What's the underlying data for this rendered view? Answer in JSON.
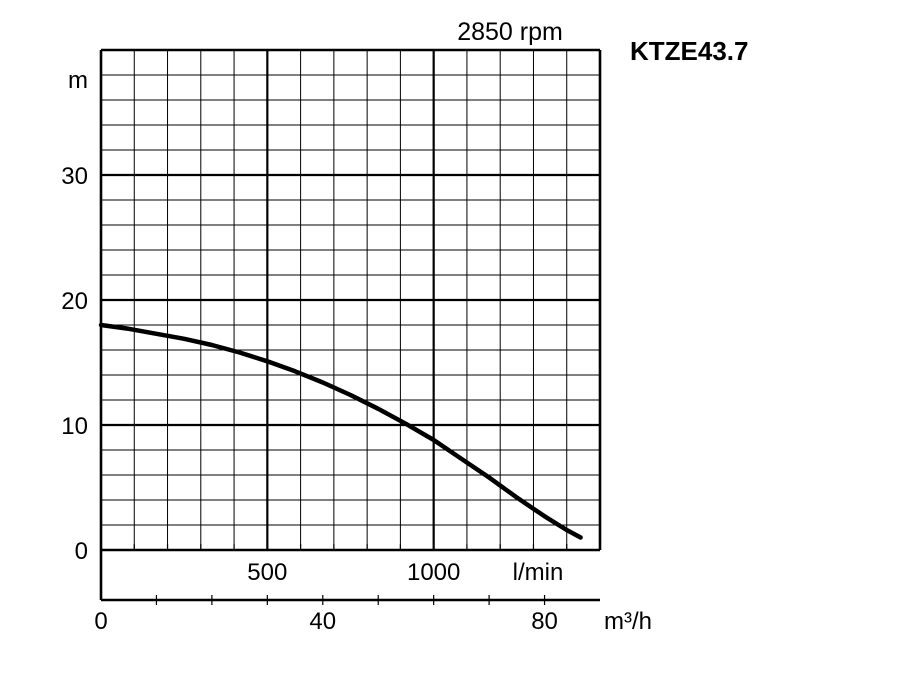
{
  "chart_data": {
    "type": "line",
    "model": "KTZE43.7",
    "speed": "2850 rpm",
    "ylabel": "m",
    "ylim": [
      0,
      40
    ],
    "y_ticks": [
      0,
      10,
      20,
      30
    ],
    "y_tick_labels": [
      "0",
      "10",
      "20",
      "30"
    ],
    "flow_axis_lmin": {
      "unit": "l/min",
      "ticks": [
        500,
        1000
      ],
      "tick_labels": [
        "500",
        "1000"
      ]
    },
    "flow_axis_m3h": {
      "unit": "m³/h",
      "ticks": [
        0,
        40,
        80
      ],
      "tick_labels": [
        "0",
        "40",
        "80"
      ],
      "range": [
        0,
        90
      ]
    },
    "grid": true,
    "series": [
      {
        "color": "#000000",
        "x": [
          0,
          5,
          10,
          15,
          20,
          25,
          30,
          35,
          40,
          45,
          50,
          55,
          60,
          65,
          70,
          75,
          80,
          84,
          86.5
        ],
        "y": [
          18.0,
          17.7,
          17.3,
          16.9,
          16.4,
          15.8,
          15.1,
          14.3,
          13.4,
          12.4,
          11.3,
          10.1,
          8.8,
          7.3,
          5.8,
          4.2,
          2.7,
          1.6,
          1.0
        ]
      }
    ]
  }
}
